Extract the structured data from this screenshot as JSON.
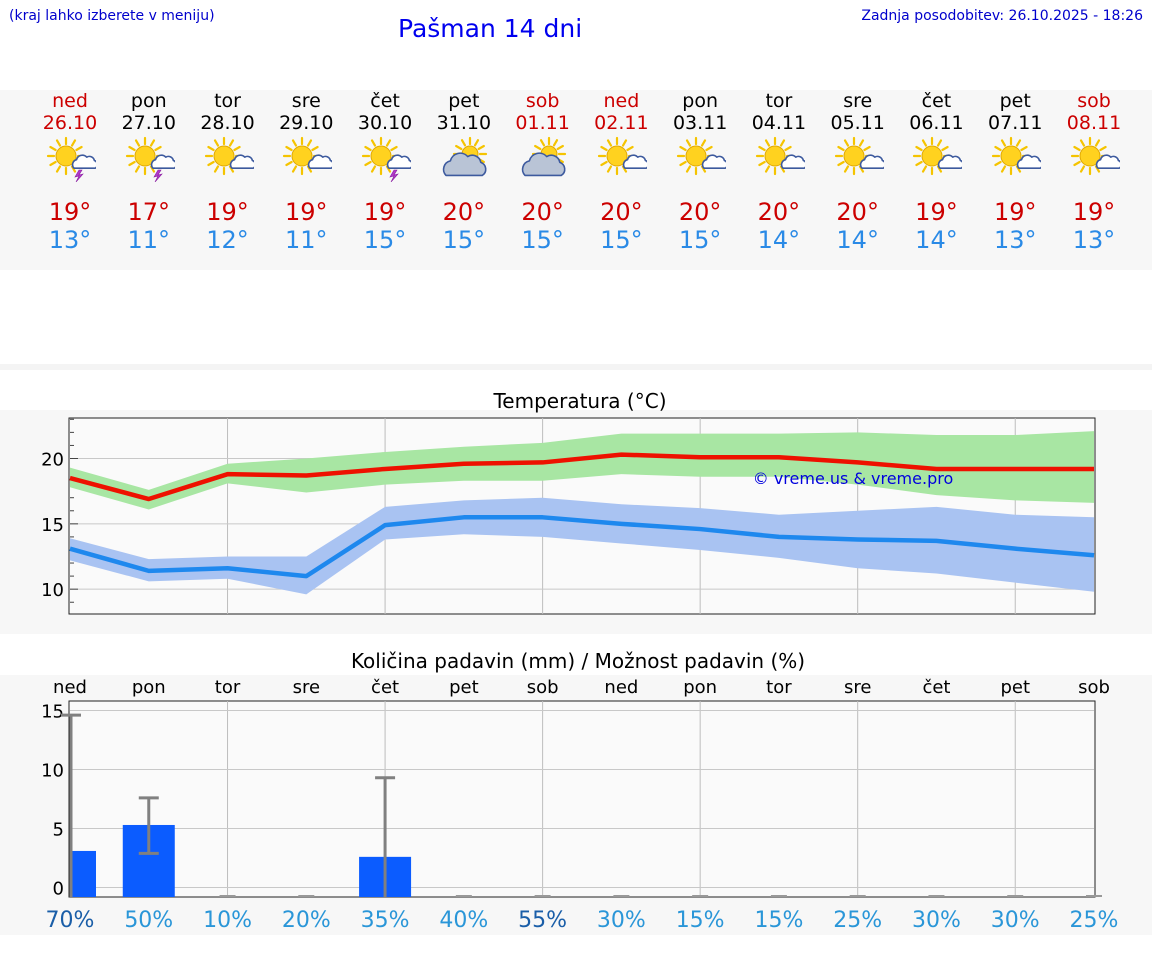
{
  "header": {
    "note": "(kraj lahko izberete v meniju)",
    "title": "Pašman 14 dni",
    "updated": "Zadnja posodobitev: 26.10.2025 - 18:26"
  },
  "forecast": {
    "days": [
      {
        "name": "ned",
        "date": "26.10",
        "weekend": true,
        "icon": "sun-cloud-lightning-icon",
        "tmax": "19°",
        "tmin": "13°"
      },
      {
        "name": "pon",
        "date": "27.10",
        "weekend": false,
        "icon": "sun-cloud-lightning-icon",
        "tmax": "17°",
        "tmin": "11°"
      },
      {
        "name": "tor",
        "date": "28.10",
        "weekend": false,
        "icon": "sun-small-cloud-icon",
        "tmax": "19°",
        "tmin": "12°"
      },
      {
        "name": "sre",
        "date": "29.10",
        "weekend": false,
        "icon": "sun-small-cloud-icon",
        "tmax": "19°",
        "tmin": "11°"
      },
      {
        "name": "čet",
        "date": "30.10",
        "weekend": false,
        "icon": "sun-cloud-lightning-icon",
        "tmax": "19°",
        "tmin": "15°"
      },
      {
        "name": "pet",
        "date": "31.10",
        "weekend": false,
        "icon": "sun-big-cloud-icon",
        "tmax": "20°",
        "tmin": "15°"
      },
      {
        "name": "sob",
        "date": "01.11",
        "weekend": true,
        "icon": "sun-big-cloud-icon",
        "tmax": "20°",
        "tmin": "15°"
      },
      {
        "name": "ned",
        "date": "02.11",
        "weekend": true,
        "icon": "sun-small-cloud-icon",
        "tmax": "20°",
        "tmin": "15°"
      },
      {
        "name": "pon",
        "date": "03.11",
        "weekend": false,
        "icon": "sun-small-cloud-icon",
        "tmax": "20°",
        "tmin": "15°"
      },
      {
        "name": "tor",
        "date": "04.11",
        "weekend": false,
        "icon": "sun-small-cloud-icon",
        "tmax": "20°",
        "tmin": "14°"
      },
      {
        "name": "sre",
        "date": "05.11",
        "weekend": false,
        "icon": "sun-small-cloud-icon",
        "tmax": "20°",
        "tmin": "14°"
      },
      {
        "name": "čet",
        "date": "06.11",
        "weekend": false,
        "icon": "sun-small-cloud-icon",
        "tmax": "19°",
        "tmin": "14°"
      },
      {
        "name": "pet",
        "date": "07.11",
        "weekend": false,
        "icon": "sun-small-cloud-icon",
        "tmax": "19°",
        "tmin": "13°"
      },
      {
        "name": "sob",
        "date": "08.11",
        "weekend": true,
        "icon": "sun-small-cloud-icon",
        "tmax": "19°",
        "tmin": "13°"
      }
    ]
  },
  "colors": {
    "max_line": "#ee1100",
    "max_band": "#a8e6a3",
    "min_line": "#1e88ee",
    "min_band": "#a9c3f2",
    "bar": "#0b5cff",
    "errbar": "#808080",
    "weekend": "#cc0000",
    "pct_dark": "#1a5ea8",
    "pct_light": "#2a96d8"
  },
  "chart_data": [
    {
      "type": "line",
      "title": "Temperatura (°C)",
      "watermark": "© vreme.us & vreme.pro",
      "x": [
        0,
        1,
        2,
        3,
        4,
        5,
        6,
        7,
        8,
        9,
        10,
        11,
        12,
        13
      ],
      "ylim": [
        8.1,
        23.1
      ],
      "yticks": [
        10,
        15,
        20
      ],
      "ytick_labels": [
        "10",
        "15",
        "20"
      ],
      "series": [
        {
          "name": "max",
          "values": [
            18.5,
            16.9,
            18.8,
            18.7,
            19.2,
            19.6,
            19.7,
            20.3,
            20.1,
            20.1,
            19.7,
            19.2,
            19.2,
            19.2
          ],
          "band_low": [
            17.8,
            16.1,
            18.1,
            17.4,
            18.0,
            18.3,
            18.3,
            18.8,
            18.6,
            18.6,
            18.0,
            17.2,
            16.8,
            16.6
          ],
          "band_high": [
            19.3,
            17.6,
            19.6,
            20.0,
            20.5,
            20.9,
            21.2,
            21.9,
            21.9,
            21.9,
            22.0,
            21.8,
            21.8,
            22.1
          ]
        },
        {
          "name": "min",
          "values": [
            13.1,
            11.4,
            11.6,
            11.0,
            14.9,
            15.5,
            15.5,
            15.0,
            14.6,
            14.0,
            13.8,
            13.7,
            13.1,
            12.6
          ],
          "band_low": [
            12.2,
            10.6,
            10.8,
            9.6,
            13.8,
            14.2,
            14.0,
            13.5,
            13.0,
            12.4,
            11.6,
            11.2,
            10.5,
            9.8
          ],
          "band_high": [
            13.9,
            12.3,
            12.5,
            12.5,
            16.3,
            16.8,
            17.0,
            16.5,
            16.2,
            15.7,
            16.0,
            16.3,
            15.7,
            15.5
          ]
        }
      ]
    },
    {
      "type": "bar",
      "title": "Količina padavin (mm) / Možnost padavin (%)",
      "categories": [
        "ned",
        "pon",
        "tor",
        "sre",
        "čet",
        "pet",
        "sob",
        "ned",
        "pon",
        "tor",
        "sre",
        "čet",
        "pet",
        "sob"
      ],
      "values": [
        3.1,
        5.3,
        0,
        0,
        2.6,
        0,
        0,
        0,
        0,
        0,
        0,
        0,
        0,
        0
      ],
      "error_high": [
        14.6,
        7.6,
        0,
        0,
        9.3,
        0,
        0,
        0,
        0,
        0,
        0,
        0,
        0,
        0
      ],
      "error_low": [
        0,
        2.9,
        0,
        0,
        0,
        0,
        0,
        0,
        0,
        0,
        0,
        0,
        0,
        0
      ],
      "ylim": [
        -0.8,
        15.8
      ],
      "yticks": [
        0,
        5,
        10,
        15
      ],
      "ytick_labels": [
        "0",
        "5",
        "10",
        "15"
      ],
      "probability_labels": [
        "70%",
        "50%",
        "10%",
        "20%",
        "35%",
        "40%",
        "55%",
        "30%",
        "15%",
        "15%",
        "25%",
        "30%",
        "30%",
        "25%"
      ],
      "probability_dark": [
        true,
        false,
        false,
        false,
        false,
        false,
        true,
        false,
        false,
        false,
        false,
        false,
        false,
        false
      ]
    }
  ]
}
